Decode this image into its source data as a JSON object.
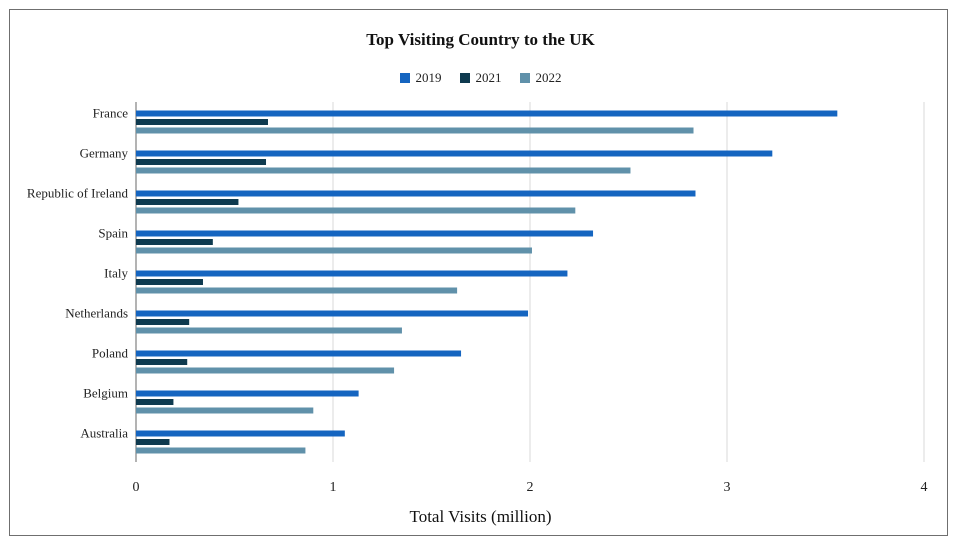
{
  "chart_data": {
    "type": "bar",
    "orientation": "horizontal",
    "title": "Top Visiting Country to the UK",
    "xlabel": "Total Visits (million)",
    "ylabel": "",
    "xlim": [
      0,
      4
    ],
    "x_ticks": [
      "0",
      "1",
      "2",
      "3",
      "4"
    ],
    "grid": true,
    "legend_position": "top",
    "categories": [
      "France",
      "Germany",
      "Republic of Ireland",
      "Spain",
      "Italy",
      "Netherlands",
      "Poland",
      "Belgium",
      "Australia"
    ],
    "series": [
      {
        "name": "2019",
        "color": "#1565C0",
        "values": [
          3.56,
          3.23,
          2.84,
          2.32,
          2.19,
          1.99,
          1.65,
          1.13,
          1.06
        ]
      },
      {
        "name": "2021",
        "color": "#0E3A4F",
        "values": [
          0.67,
          0.66,
          0.52,
          0.39,
          0.34,
          0.27,
          0.26,
          0.19,
          0.17
        ]
      },
      {
        "name": "2022",
        "color": "#6091AA",
        "values": [
          2.83,
          2.51,
          2.23,
          2.01,
          1.63,
          1.35,
          1.31,
          0.9,
          0.86
        ]
      }
    ]
  }
}
